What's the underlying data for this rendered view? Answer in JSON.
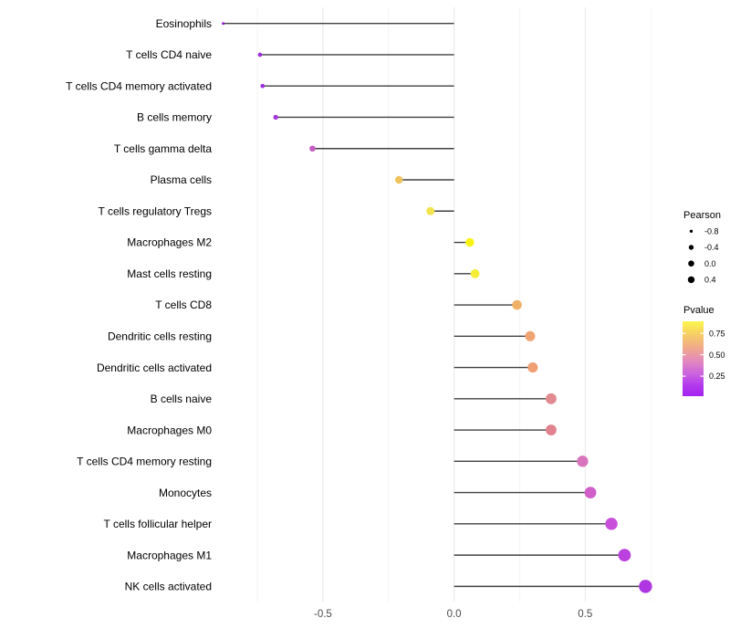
{
  "chart_data": {
    "type": "lollipop",
    "title": "",
    "xlabel": "",
    "ylabel": "",
    "x_axis": {
      "ticks": [
        -0.5,
        0.0,
        0.5
      ],
      "tick_labels": [
        "-0.5",
        "0.0",
        "0.5"
      ],
      "major_gridlines": [
        -0.5,
        0.0,
        0.5
      ],
      "minor_gridlines": [
        -0.75,
        -0.25,
        0.25,
        0.75
      ],
      "xlim": [
        -0.9,
        0.76
      ]
    },
    "baseline_x": 0.0,
    "points": [
      {
        "label": "Eosinophils",
        "pearson": -0.88,
        "pvalue_est": 0.02,
        "color": "#8E1CC8",
        "radius": 1.5
      },
      {
        "label": "T cells CD4 naive",
        "pearson": -0.74,
        "pvalue_est": 0.06,
        "color": "#9D2BDE",
        "radius": 2.3
      },
      {
        "label": "T cells CD4 memory activated",
        "pearson": -0.73,
        "pvalue_est": 0.06,
        "color": "#9D2BDE",
        "radius": 2.3
      },
      {
        "label": "B cells memory",
        "pearson": -0.68,
        "pvalue_est": 0.09,
        "color": "#A538D8",
        "radius": 2.7
      },
      {
        "label": "T cells gamma delta",
        "pearson": -0.54,
        "pvalue_est": 0.2,
        "color": "#C45CC2",
        "radius": 3.3
      },
      {
        "label": "Plasma cells",
        "pearson": -0.21,
        "pvalue_est": 0.67,
        "color": "#EFC35E",
        "radius": 4.2
      },
      {
        "label": "T cells regulatory  Tregs",
        "pearson": -0.09,
        "pvalue_est": 0.8,
        "color": "#F2E44E",
        "radius": 4.5
      },
      {
        "label": "Macrophages M2",
        "pearson": 0.06,
        "pvalue_est": 0.92,
        "color": "#F8F215",
        "radius": 4.8
      },
      {
        "label": "Mast cells resting",
        "pearson": 0.08,
        "pvalue_est": 0.87,
        "color": "#F5EC38",
        "radius": 4.9
      },
      {
        "label": "T cells CD8",
        "pearson": 0.24,
        "pvalue_est": 0.62,
        "color": "#EFB166",
        "radius": 5.3
      },
      {
        "label": "Dendritic cells resting",
        "pearson": 0.29,
        "pvalue_est": 0.56,
        "color": "#F0A472",
        "radius": 5.5
      },
      {
        "label": "Dendritic cells activated",
        "pearson": 0.3,
        "pvalue_est": 0.55,
        "color": "#EF9F74",
        "radius": 5.6
      },
      {
        "label": "B cells naive",
        "pearson": 0.37,
        "pvalue_est": 0.45,
        "color": "#E18A90",
        "radius": 5.9
      },
      {
        "label": "Macrophages M0",
        "pearson": 0.37,
        "pvalue_est": 0.44,
        "color": "#E0838F",
        "radius": 5.9
      },
      {
        "label": "T cells CD4 memory resting",
        "pearson": 0.49,
        "pvalue_est": 0.33,
        "color": "#D874BC",
        "radius": 6.2
      },
      {
        "label": "Monocytes",
        "pearson": 0.52,
        "pvalue_est": 0.28,
        "color": "#D05FCA",
        "radius": 6.4
      },
      {
        "label": "T cells follicular helper",
        "pearson": 0.6,
        "pvalue_est": 0.21,
        "color": "#C74FDA",
        "radius": 6.7
      },
      {
        "label": "Macrophages M1",
        "pearson": 0.65,
        "pvalue_est": 0.16,
        "color": "#BB41DE",
        "radius": 6.9
      },
      {
        "label": "NK cells activated",
        "pearson": 0.73,
        "pvalue_est": 0.1,
        "color": "#AF37E2",
        "radius": 7.2
      }
    ],
    "legend_size": {
      "title": "Pearson",
      "entries": [
        {
          "label": "-0.8",
          "radius": 1.7
        },
        {
          "label": "-0.4",
          "radius": 2.7
        },
        {
          "label": "0.0",
          "radius": 3.3
        },
        {
          "label": "0.4",
          "radius": 3.7
        }
      ],
      "key_color": "#000000"
    },
    "legend_color": {
      "title": "Pvalue",
      "tick_labels": [
        "0.75",
        "0.50",
        "0.25"
      ],
      "tick_values": [
        0.75,
        0.5,
        0.25
      ],
      "range": [
        0.016,
        0.89
      ],
      "gradient_stops": [
        {
          "offset": 0.0,
          "color": "#FBF64B"
        },
        {
          "offset": 0.18,
          "color": "#F6CD66"
        },
        {
          "offset": 0.36,
          "color": "#F0A88C"
        },
        {
          "offset": 0.52,
          "color": "#E48BBB"
        },
        {
          "offset": 0.7,
          "color": "#CB63DF"
        },
        {
          "offset": 0.85,
          "color": "#B33BEC"
        },
        {
          "offset": 1.0,
          "color": "#A322F0"
        }
      ]
    },
    "style_colors": {
      "background": "#FFFFFF",
      "stem": "#404040",
      "grid_major": "#E7E7E7",
      "grid_minor": "#F3F3F3",
      "axis_text": "#4D4D4D",
      "category_text": "#000000",
      "legend_text": "#000000"
    }
  }
}
